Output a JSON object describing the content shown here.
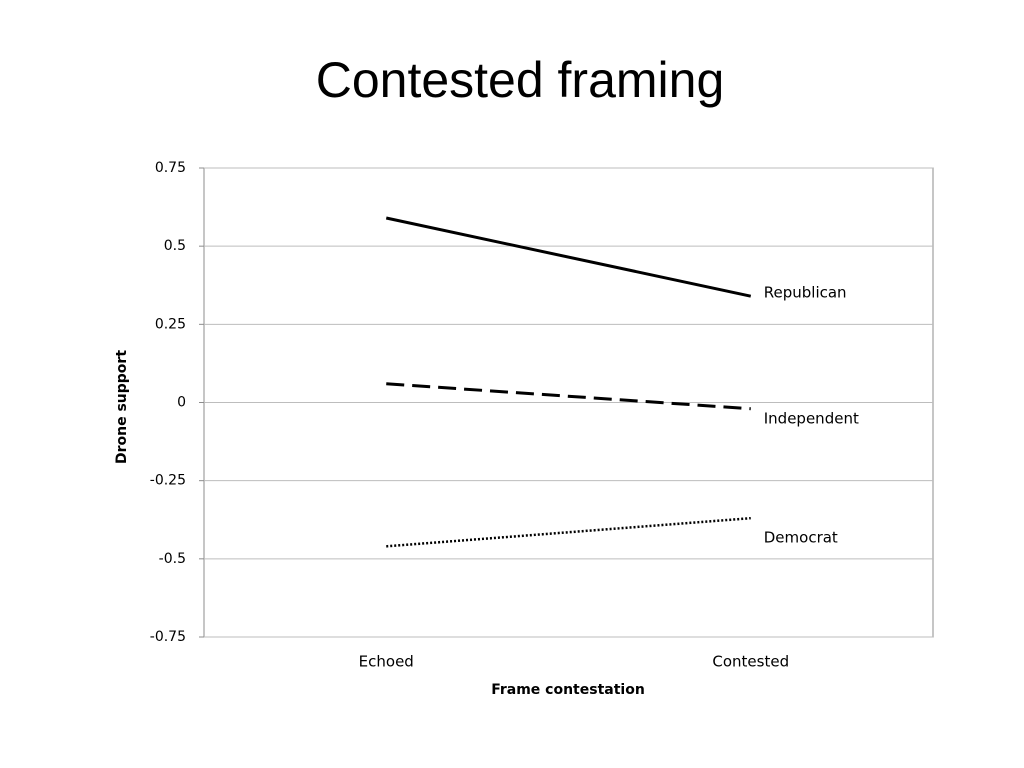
{
  "chart_data": {
    "type": "line",
    "title": "Contested framing",
    "x_label": "Frame contestation",
    "y_label": "Drone support",
    "categories": [
      "Echoed",
      "Contested"
    ],
    "series": [
      {
        "name": "Republican",
        "color": "#000000",
        "dash": "solid",
        "values": [
          0.59,
          0.34
        ]
      },
      {
        "name": "Independent",
        "color": "#000000",
        "dash": "dashed",
        "values": [
          0.06,
          -0.02
        ]
      },
      {
        "name": "Democrat",
        "color": "#000000",
        "dash": "dotted",
        "values": [
          -0.46,
          -0.37
        ]
      }
    ],
    "ylim": [
      -0.75,
      0.75
    ],
    "yticks": [
      -0.75,
      -0.5,
      -0.25,
      0,
      0.25,
      0.5,
      0.75
    ],
    "grid": true
  }
}
